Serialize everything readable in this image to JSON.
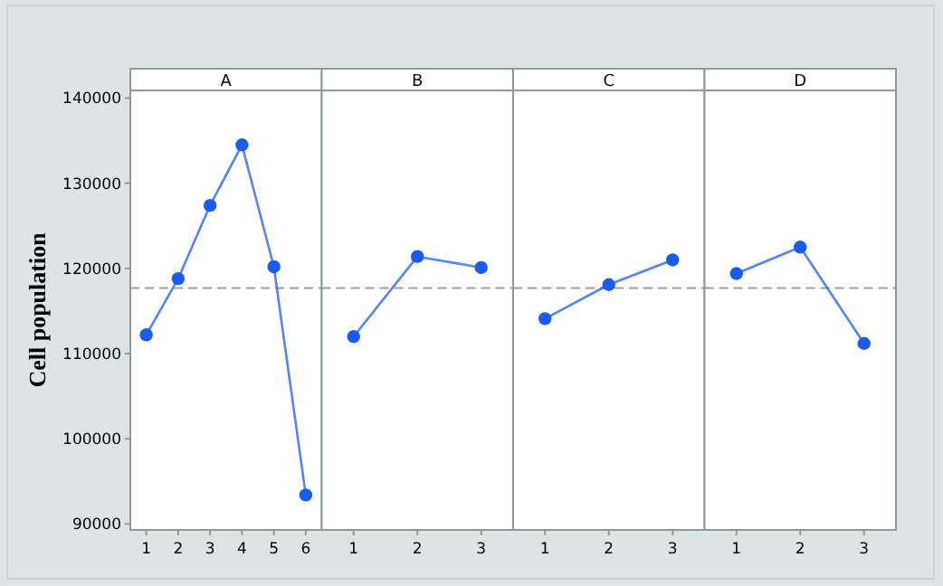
{
  "chart_data": [
    {
      "type": "line",
      "title": "A",
      "ylabel": "Cell population",
      "categories": [
        "1",
        "2",
        "3",
        "4",
        "5",
        "6"
      ],
      "series": [
        {
          "color": "#1a5cf2",
          "values": [
            112200,
            118800,
            127400,
            134500,
            120200,
            93400
          ]
        }
      ],
      "ylim": [
        89300,
        140900
      ],
      "yticks": [
        90000,
        100000,
        110000,
        120000,
        130000,
        140000
      ],
      "ref_lines": [
        {
          "axis": "y",
          "value": 117700,
          "color": "#a0a0a0",
          "line_style": "dashed"
        }
      ],
      "marker": "circle",
      "grid": false
    },
    {
      "type": "line",
      "title": "B",
      "categories": [
        "1",
        "2",
        "3"
      ],
      "series": [
        {
          "color": "#1a5cf2",
          "values": [
            112000,
            121400,
            120100
          ]
        }
      ],
      "ylim": [
        89300,
        140900
      ],
      "tick_labels": "x",
      "ref_lines": [
        {
          "axis": "y",
          "value": 117700,
          "color": "#a0a0a0",
          "line_style": "dashed"
        }
      ],
      "marker": "circle",
      "grid": false
    },
    {
      "type": "line",
      "title": "C",
      "categories": [
        "1",
        "2",
        "3"
      ],
      "series": [
        {
          "color": "#1a5cf2",
          "values": [
            114100,
            118100,
            121000
          ]
        }
      ],
      "ylim": [
        89300,
        140900
      ],
      "tick_labels": "x",
      "ref_lines": [
        {
          "axis": "y",
          "value": 117700,
          "color": "#a0a0a0",
          "line_style": "dashed"
        }
      ],
      "marker": "circle",
      "grid": false
    },
    {
      "type": "line",
      "title": "D",
      "categories": [
        "1",
        "2",
        "3"
      ],
      "series": [
        {
          "color": "#1a5cf2",
          "values": [
            119400,
            122500,
            111200
          ]
        }
      ],
      "ylim": [
        89300,
        140900
      ],
      "tick_labels": "x",
      "ref_lines": [
        {
          "axis": "y",
          "value": 117700,
          "color": "#a0a0a0",
          "line_style": "dashed"
        }
      ],
      "marker": "circle",
      "grid": false
    }
  ]
}
